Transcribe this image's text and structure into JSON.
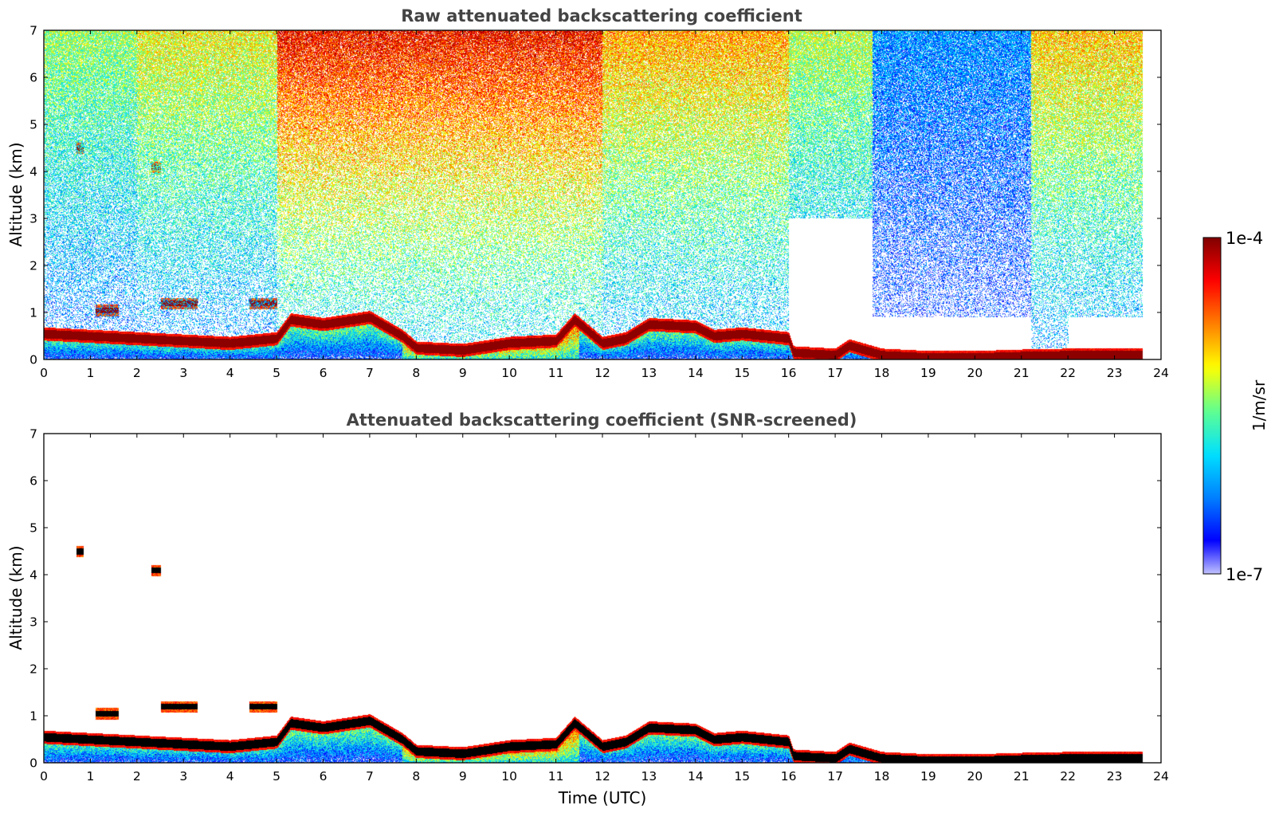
{
  "colors": {
    "colormap": [
      "#ffffff",
      "#0000ff",
      "#0080ff",
      "#00e0ff",
      "#60ff90",
      "#ffff00",
      "#ff8000",
      "#ff0000",
      "#800000"
    ],
    "cloud_base": "#000000",
    "axis": "#000000",
    "title": "#444444"
  },
  "chart_data": [
    {
      "type": "heatmap",
      "title": "Raw attenuated backscattering coefficient",
      "xlabel": "",
      "ylabel": "Altitude (km)",
      "xlim": [
        0,
        24
      ],
      "ylim": [
        0,
        7
      ],
      "xticks": [
        "0",
        "1",
        "2",
        "3",
        "4",
        "5",
        "6",
        "7",
        "8",
        "9",
        "10",
        "11",
        "12",
        "13",
        "14",
        "15",
        "16",
        "17",
        "18",
        "19",
        "20",
        "21",
        "22",
        "23",
        "24"
      ],
      "yticks": [
        "0",
        "1",
        "2",
        "3",
        "4",
        "5",
        "6",
        "7"
      ],
      "data_end_hour": 23.6,
      "screened": false,
      "layers": [
        {
          "kind": "boundary-layer",
          "x": [
            0,
            1,
            2,
            3,
            4,
            5,
            5.3,
            6,
            7,
            7.7,
            8,
            9,
            10,
            11,
            11.4,
            12,
            12.5,
            13,
            14,
            14.4,
            15,
            16,
            16.1,
            17,
            17.3,
            18,
            19,
            20,
            21,
            22,
            23,
            23.6
          ],
          "top_km": [
            0.55,
            0.5,
            0.45,
            0.4,
            0.35,
            0.45,
            0.85,
            0.75,
            0.9,
            0.5,
            0.25,
            0.2,
            0.35,
            0.4,
            0.85,
            0.35,
            0.45,
            0.75,
            0.7,
            0.5,
            0.55,
            0.45,
            0.15,
            0.1,
            0.3,
            0.1,
            0.05,
            0.05,
            0.08,
            0.1,
            0.1,
            0.1
          ]
        },
        {
          "kind": "elevated-cloud",
          "x_start": 1.1,
          "x_end": 1.6,
          "alt_km": 1.05
        },
        {
          "kind": "elevated-cloud",
          "x_start": 2.5,
          "x_end": 3.3,
          "alt_km": 1.2
        },
        {
          "kind": "elevated-cloud",
          "x_start": 4.4,
          "x_end": 5.0,
          "alt_km": 1.2
        },
        {
          "kind": "elevated-cloud",
          "x_start": 0.7,
          "x_end": 0.85,
          "alt_km": 4.5
        },
        {
          "kind": "elevated-cloud",
          "x_start": 2.3,
          "x_end": 2.5,
          "alt_km": 4.1
        }
      ]
    },
    {
      "type": "heatmap",
      "title": "Attenuated backscattering coefficient (SNR-screened)",
      "xlabel": "Time (UTC)",
      "ylabel": "Altitude (km)",
      "xlim": [
        0,
        24
      ],
      "ylim": [
        0,
        7
      ],
      "xticks": [
        "0",
        "1",
        "2",
        "3",
        "4",
        "5",
        "6",
        "7",
        "8",
        "9",
        "10",
        "11",
        "12",
        "13",
        "14",
        "15",
        "16",
        "17",
        "18",
        "19",
        "20",
        "21",
        "22",
        "23",
        "24"
      ],
      "yticks": [
        "0",
        "1",
        "2",
        "3",
        "4",
        "5",
        "6",
        "7"
      ],
      "data_end_hour": 23.6,
      "screened": true
    }
  ],
  "colorbar": {
    "label": "1/m/sr",
    "max_label": "1e-4",
    "min_label": "1e-7",
    "scale": "log"
  }
}
